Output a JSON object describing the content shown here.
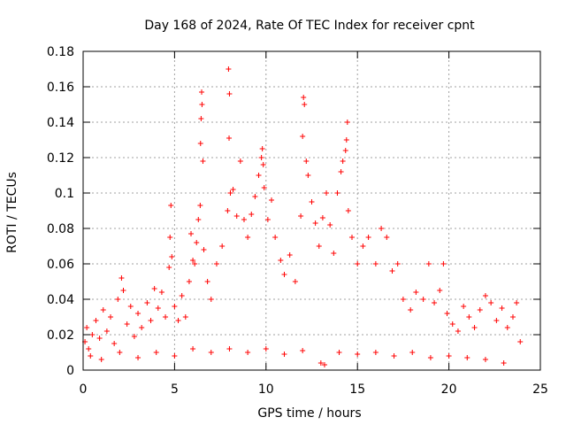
{
  "chart_data": {
    "type": "scatter",
    "title": "Day 168 of 2024, Rate Of TEC Index for receiver cpnt",
    "xlabel": "GPS time / hours",
    "ylabel": "ROTI / TECUs",
    "xlim": [
      0,
      25
    ],
    "ylim": [
      0,
      0.18
    ],
    "xticks": [
      0,
      5,
      10,
      15,
      20,
      25
    ],
    "xtick_labels": [
      "0",
      "5",
      "10",
      "15",
      "20",
      "25"
    ],
    "yticks": [
      0,
      0.02,
      0.04,
      0.06,
      0.08,
      0.1,
      0.12,
      0.14,
      0.16,
      0.18
    ],
    "ytick_labels": [
      "0",
      "0.02",
      "0.04",
      "0.06",
      "0.08",
      "0.1",
      "0.12",
      "0.14",
      "0.16",
      "0.18"
    ],
    "grid": true,
    "marker": "+",
    "color": "#ff0000",
    "series": [
      {
        "name": "ROTI",
        "points": [
          [
            0.1,
            0.016
          ],
          [
            0.2,
            0.024
          ],
          [
            0.3,
            0.012
          ],
          [
            0.5,
            0.02
          ],
          [
            0.7,
            0.028
          ],
          [
            0.9,
            0.018
          ],
          [
            1.1,
            0.034
          ],
          [
            1.3,
            0.022
          ],
          [
            1.5,
            0.03
          ],
          [
            1.7,
            0.015
          ],
          [
            1.9,
            0.04
          ],
          [
            2.1,
            0.052
          ],
          [
            2.2,
            0.045
          ],
          [
            2.4,
            0.026
          ],
          [
            2.6,
            0.036
          ],
          [
            2.8,
            0.019
          ],
          [
            3.0,
            0.032
          ],
          [
            3.2,
            0.024
          ],
          [
            3.5,
            0.038
          ],
          [
            3.7,
            0.028
          ],
          [
            3.9,
            0.046
          ],
          [
            4.1,
            0.035
          ],
          [
            4.3,
            0.044
          ],
          [
            4.5,
            0.03
          ],
          [
            4.7,
            0.058
          ],
          [
            4.75,
            0.075
          ],
          [
            4.8,
            0.093
          ],
          [
            4.85,
            0.064
          ],
          [
            5.0,
            0.036
          ],
          [
            5.2,
            0.028
          ],
          [
            5.4,
            0.042
          ],
          [
            5.6,
            0.03
          ],
          [
            5.8,
            0.05
          ],
          [
            5.9,
            0.077
          ],
          [
            6.0,
            0.062
          ],
          [
            6.1,
            0.06
          ],
          [
            6.2,
            0.072
          ],
          [
            6.3,
            0.085
          ],
          [
            6.4,
            0.093
          ],
          [
            6.42,
            0.128
          ],
          [
            6.45,
            0.142
          ],
          [
            6.48,
            0.157
          ],
          [
            6.5,
            0.15
          ],
          [
            6.55,
            0.118
          ],
          [
            6.6,
            0.068
          ],
          [
            6.8,
            0.05
          ],
          [
            7.0,
            0.04
          ],
          [
            7.3,
            0.06
          ],
          [
            7.6,
            0.07
          ],
          [
            7.9,
            0.09
          ],
          [
            7.95,
            0.17
          ],
          [
            8.0,
            0.156
          ],
          [
            7.98,
            0.131
          ],
          [
            8.05,
            0.1
          ],
          [
            8.2,
            0.102
          ],
          [
            8.4,
            0.087
          ],
          [
            8.6,
            0.118
          ],
          [
            8.8,
            0.085
          ],
          [
            9.0,
            0.075
          ],
          [
            9.2,
            0.088
          ],
          [
            9.4,
            0.098
          ],
          [
            9.6,
            0.11
          ],
          [
            9.75,
            0.12
          ],
          [
            9.8,
            0.125
          ],
          [
            9.85,
            0.116
          ],
          [
            9.9,
            0.103
          ],
          [
            10.1,
            0.085
          ],
          [
            10.3,
            0.096
          ],
          [
            10.5,
            0.075
          ],
          [
            10.8,
            0.062
          ],
          [
            11.0,
            0.054
          ],
          [
            11.3,
            0.065
          ],
          [
            11.6,
            0.05
          ],
          [
            11.9,
            0.087
          ],
          [
            12.0,
            0.132
          ],
          [
            12.05,
            0.154
          ],
          [
            12.1,
            0.15
          ],
          [
            12.2,
            0.118
          ],
          [
            12.3,
            0.11
          ],
          [
            12.5,
            0.095
          ],
          [
            12.7,
            0.083
          ],
          [
            12.9,
            0.07
          ],
          [
            13.1,
            0.086
          ],
          [
            13.3,
            0.1
          ],
          [
            13.5,
            0.082
          ],
          [
            13.7,
            0.066
          ],
          [
            13.9,
            0.1
          ],
          [
            14.1,
            0.112
          ],
          [
            14.2,
            0.118
          ],
          [
            14.35,
            0.124
          ],
          [
            14.4,
            0.13
          ],
          [
            14.45,
            0.14
          ],
          [
            14.5,
            0.09
          ],
          [
            14.7,
            0.075
          ],
          [
            15.0,
            0.06
          ],
          [
            15.3,
            0.07
          ],
          [
            15.6,
            0.075
          ],
          [
            16.0,
            0.06
          ],
          [
            16.3,
            0.08
          ],
          [
            16.6,
            0.075
          ],
          [
            16.9,
            0.056
          ],
          [
            17.2,
            0.06
          ],
          [
            17.5,
            0.04
          ],
          [
            17.9,
            0.034
          ],
          [
            18.2,
            0.044
          ],
          [
            18.6,
            0.04
          ],
          [
            18.9,
            0.06
          ],
          [
            19.2,
            0.038
          ],
          [
            19.5,
            0.045
          ],
          [
            19.7,
            0.06
          ],
          [
            19.9,
            0.032
          ],
          [
            20.2,
            0.026
          ],
          [
            20.5,
            0.022
          ],
          [
            20.8,
            0.036
          ],
          [
            21.1,
            0.03
          ],
          [
            21.4,
            0.024
          ],
          [
            21.7,
            0.034
          ],
          [
            22.0,
            0.042
          ],
          [
            22.3,
            0.038
          ],
          [
            22.6,
            0.028
          ],
          [
            22.9,
            0.035
          ],
          [
            23.2,
            0.024
          ],
          [
            23.5,
            0.03
          ],
          [
            23.7,
            0.038
          ],
          [
            23.9,
            0.016
          ],
          [
            0.4,
            0.008
          ],
          [
            1.0,
            0.006
          ],
          [
            2.0,
            0.01
          ],
          [
            3.0,
            0.007
          ],
          [
            4.0,
            0.01
          ],
          [
            5.0,
            0.008
          ],
          [
            6.0,
            0.012
          ],
          [
            7.0,
            0.01
          ],
          [
            8.0,
            0.012
          ],
          [
            9.0,
            0.01
          ],
          [
            10.0,
            0.012
          ],
          [
            11.0,
            0.009
          ],
          [
            12.0,
            0.011
          ],
          [
            13.0,
            0.004
          ],
          [
            13.2,
            0.003
          ],
          [
            14.0,
            0.01
          ],
          [
            15.0,
            0.009
          ],
          [
            16.0,
            0.01
          ],
          [
            17.0,
            0.008
          ],
          [
            18.0,
            0.01
          ],
          [
            19.0,
            0.007
          ],
          [
            20.0,
            0.008
          ],
          [
            21.0,
            0.007
          ],
          [
            22.0,
            0.006
          ],
          [
            23.0,
            0.004
          ]
        ]
      }
    ]
  }
}
